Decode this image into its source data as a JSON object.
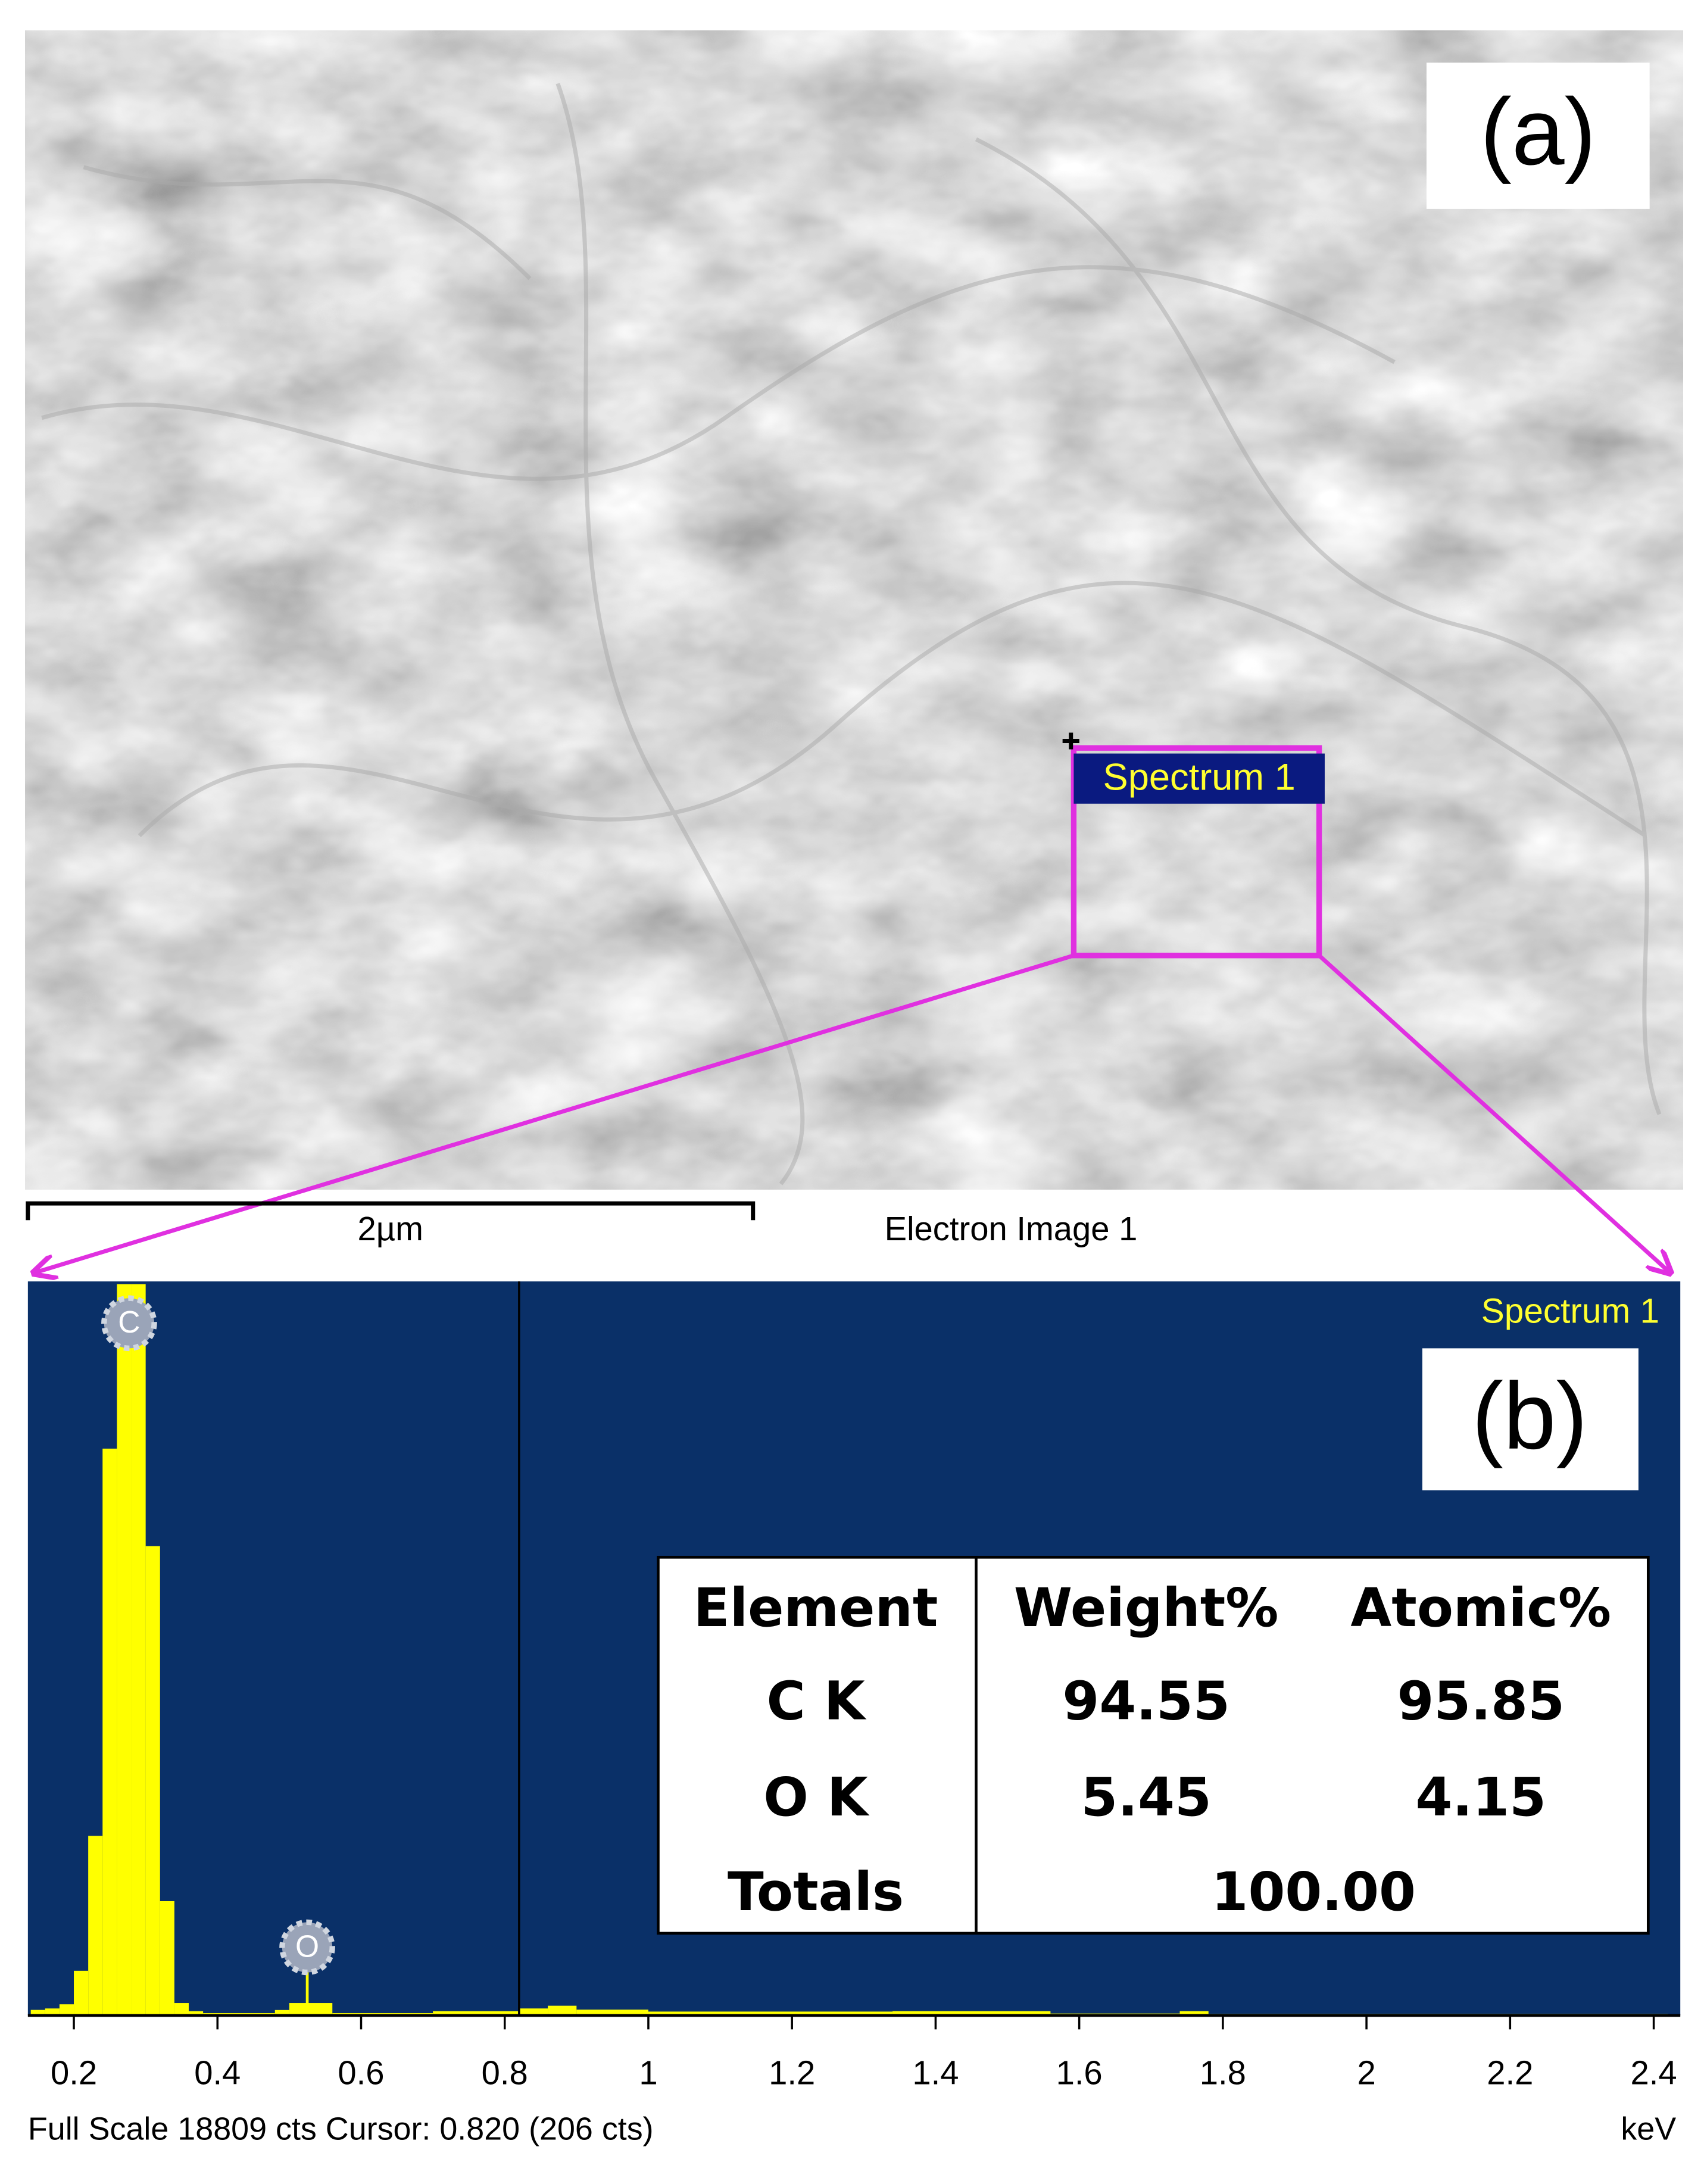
{
  "panel_a": {
    "label": "(a)",
    "region_label": "Spectrum 1",
    "scale_bar": "2µm",
    "image_label": "Electron Image 1"
  },
  "panel_b": {
    "label": "(b)",
    "spectrum_name": "Spectrum 1",
    "spectrum": {
      "type": "histogram",
      "bins": [
        0.14,
        0.16,
        0.18,
        0.2,
        0.22,
        0.24,
        0.26,
        0.28,
        0.3,
        0.32,
        0.34,
        0.36,
        0.38,
        0.48,
        0.5,
        0.56,
        0.7,
        0.82,
        0.86,
        0.9,
        1.0,
        1.34,
        1.56,
        1.74,
        1.78,
        2.42
      ],
      "counts": [
        143,
        180,
        287,
        1150,
        4620,
        14580,
        18809,
        18809,
        12070,
        2940,
        320,
        110,
        60,
        140,
        320,
        60,
        110,
        180,
        250,
        150,
        100,
        110,
        50,
        110,
        40
      ],
      "color": "#ffff00",
      "xlim": [
        0.136,
        2.437
      ],
      "ylim": [
        0,
        18809
      ],
      "xticks": [
        0.2,
        0.4,
        0.6,
        0.8,
        1,
        1.2,
        1.4,
        1.6,
        1.8,
        2,
        2.2,
        2.4
      ],
      "x_unit": "keV",
      "cursor": 0.82,
      "peaks": [
        {
          "label": "C",
          "energy": 0.277
        },
        {
          "label": "O",
          "energy": 0.525
        }
      ]
    },
    "footer": "Full Scale 18809 cts Cursor: 0.820  (206 cts)",
    "table": {
      "header": [
        "Element",
        "Weight%",
        "Atomic%"
      ],
      "rows": [
        [
          "C K",
          "94.55",
          "95.85"
        ],
        [
          "O K",
          "5.45",
          "4.15"
        ]
      ],
      "totals": [
        "Totals",
        "100.00"
      ]
    }
  }
}
